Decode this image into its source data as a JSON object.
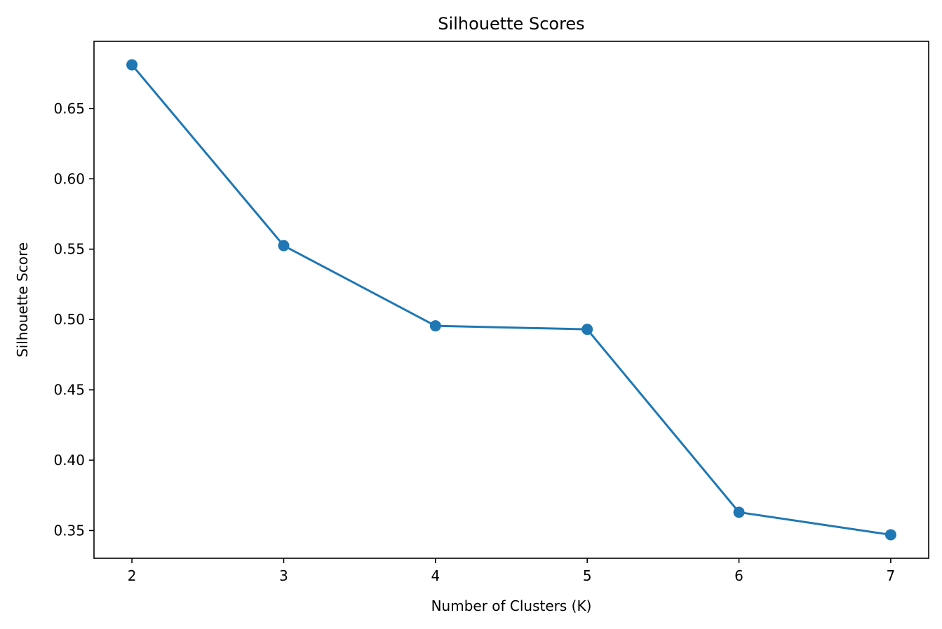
{
  "chart_data": {
    "type": "line",
    "title": "Silhouette Scores",
    "xlabel": "Number of Clusters (K)",
    "ylabel": "Silhouette Score",
    "x": [
      2,
      3,
      4,
      5,
      6,
      7
    ],
    "series": [
      {
        "values": [
          0.681,
          0.5525,
          0.4955,
          0.493,
          0.363,
          0.347
        ],
        "color": "#1f77b4",
        "marker": "circle"
      }
    ],
    "xticks": [
      "2",
      "3",
      "4",
      "5",
      "6",
      "7"
    ],
    "yticks": [
      "0.35",
      "0.40",
      "0.45",
      "0.50",
      "0.55",
      "0.60",
      "0.65"
    ],
    "xlim": [
      1.75,
      7.25
    ],
    "ylim": [
      0.3303,
      0.6977
    ],
    "grid": false,
    "legend": false
  }
}
